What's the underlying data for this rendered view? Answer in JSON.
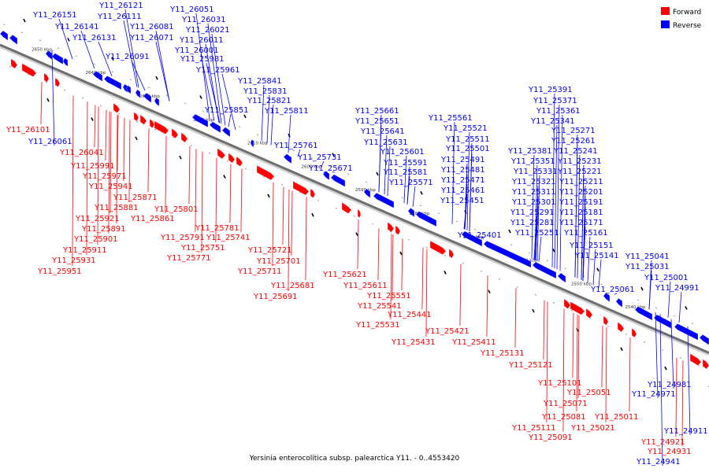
{
  "caption": "Yersinia enterocolitica subsp. palearctica Y11. - 0..4553420",
  "legend": [
    {
      "label": "Forward",
      "color": "#ff0000"
    },
    {
      "label": "Reverse",
      "color": "#0000ff"
    }
  ],
  "colors": {
    "forward": "#ff0000",
    "reverse": "#0000ff",
    "backbone": "#6e6e6e"
  },
  "ticks": [
    "2650 kbp",
    "2640 kbp",
    "2630 kbp",
    "2620 kbp",
    "2610 kbp",
    "2600 kbp",
    "2590 kbp",
    "2580 kbp",
    "2570 kbp",
    "2560 kbp",
    "2550 kbp",
    "2540 kbp"
  ],
  "reverse_labels": [
    "Y11_26151",
    "Y11_26141",
    "Y11_26131",
    "Y11_26121",
    "Y11_26111",
    "Y11_26081",
    "Y11_26071",
    "Y11_26091",
    "Y11_26051",
    "Y11_26031",
    "Y11_26021",
    "Y11_26011",
    "Y11_26001",
    "Y11_25981",
    "Y11_25961",
    "Y11_25841",
    "Y11_25831",
    "Y11_25821",
    "Y11_25851",
    "Y11_25811",
    "Y11_26061",
    "Y11_25761",
    "Y11_25731",
    "Y11_25671",
    "Y11_25661",
    "Y11_25651",
    "Y11_25641",
    "Y11_25631",
    "Y11_25601",
    "Y11_25591",
    "Y11_25581",
    "Y11_25571",
    "Y11_25561",
    "Y11_25521",
    "Y11_25511",
    "Y11_25501",
    "Y11_25491",
    "Y11_25481",
    "Y11_25471",
    "Y11_25461",
    "Y11_25451",
    "Y11_25401",
    "Y11_25391",
    "Y11_25371",
    "Y11_25361",
    "Y11_25341",
    "Y11_25271",
    "Y11_25261",
    "Y11_25381",
    "Y11_25241",
    "Y11_25351",
    "Y11_25231",
    "Y11_25331",
    "Y11_25221",
    "Y11_25321",
    "Y11_25211",
    "Y11_25311",
    "Y11_25201",
    "Y11_25301",
    "Y11_25191",
    "Y11_25291",
    "Y11_25181",
    "Y11_25281",
    "Y11_25171",
    "Y11_25251",
    "Y11_25161",
    "Y11_25151",
    "Y11_25141",
    "Y11_25041",
    "Y11_25031",
    "Y11_25001",
    "Y11_24991",
    "Y11_25061",
    "Y11_24981",
    "Y11_24971",
    "Y11_24911",
    "Y11_24941"
  ],
  "forward_labels": [
    "Y11_26101",
    "Y11_26041",
    "Y11_25991",
    "Y11_25971",
    "Y11_25941",
    "Y11_25871",
    "Y11_25881",
    "Y11_25921",
    "Y11_25891",
    "Y11_25901",
    "Y11_25911",
    "Y11_25931",
    "Y11_25951",
    "Y11_25861",
    "Y11_25801",
    "Y11_25781",
    "Y11_25791",
    "Y11_25741",
    "Y11_25751",
    "Y11_25771",
    "Y11_25721",
    "Y11_25701",
    "Y11_25711",
    "Y11_25681",
    "Y11_25691",
    "Y11_25621",
    "Y11_25611",
    "Y11_25551",
    "Y11_25541",
    "Y11_25531",
    "Y11_25441",
    "Y11_25431",
    "Y11_25421",
    "Y11_25411",
    "Y11_25131",
    "Y11_25121",
    "Y11_25101",
    "Y11_25051",
    "Y11_25071",
    "Y11_25081",
    "Y11_25011",
    "Y11_25111",
    "Y11_25021",
    "Y11_25091",
    "Y11_24921",
    "Y11_24931"
  ]
}
